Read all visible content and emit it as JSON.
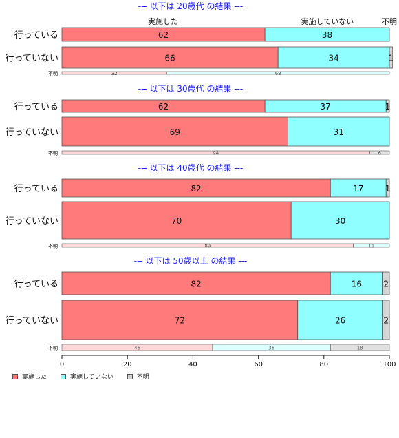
{
  "colors": {
    "done": "#ff7b7b",
    "not_done": "#8fffff",
    "unknown": "#d6d6d6",
    "title": "#2222ee",
    "edge": "#555555"
  },
  "header_labels": [
    "実施した",
    "実施していない",
    "不明"
  ],
  "legend": [
    "実施した",
    "実施していない",
    "不明"
  ],
  "axis": {
    "min": 0,
    "max": 100,
    "ticks": [
      "0",
      "20",
      "40",
      "60",
      "80",
      "100"
    ]
  },
  "chart_data": {
    "type": "bar",
    "orientation": "horizontal",
    "stacked": true,
    "xlim": [
      0,
      100
    ],
    "series_names": [
      "実施した",
      "実施していない",
      "不明"
    ],
    "panels": [
      {
        "title": "--- 以下は 20歳代 の結果 ---",
        "rows": [
          {
            "label": "行っている",
            "values": [
              62,
              38,
              0
            ],
            "labels": [
              "62",
              "38",
              ""
            ]
          },
          {
            "label": "行っていない",
            "values": [
              66,
              34,
              1
            ],
            "labels": [
              "66",
              "34",
              "1"
            ]
          },
          {
            "label": "不明",
            "small": true,
            "values": [
              32,
              68,
              0
            ],
            "labels": [
              "32",
              "68",
              ""
            ]
          }
        ]
      },
      {
        "title": "--- 以下は 30歳代 の結果 ---",
        "rows": [
          {
            "label": "行っている",
            "values": [
              62,
              37,
              1
            ],
            "labels": [
              "62",
              "37",
              "1"
            ]
          },
          {
            "label": "行っていない",
            "values": [
              69,
              31,
              0
            ],
            "labels": [
              "69",
              "31",
              ""
            ]
          },
          {
            "label": "不明",
            "small": true,
            "values": [
              94,
              0,
              6
            ],
            "labels": [
              "94",
              "",
              "6"
            ]
          }
        ]
      },
      {
        "title": "--- 以下は 40歳代 の結果 ---",
        "rows": [
          {
            "label": "行っている",
            "values": [
              82,
              17,
              1
            ],
            "labels": [
              "82",
              "17",
              "1"
            ]
          },
          {
            "label": "行っていない",
            "values": [
              70,
              30,
              0
            ],
            "labels": [
              "70",
              "30",
              ""
            ]
          },
          {
            "label": "不明",
            "small": true,
            "values": [
              89,
              11,
              0
            ],
            "labels": [
              "89",
              "11",
              ""
            ]
          }
        ]
      },
      {
        "title": "--- 以下は 50歳以上 の結果 ---",
        "rows": [
          {
            "label": "行っている",
            "values": [
              82,
              16,
              2
            ],
            "labels": [
              "82",
              "16",
              "2"
            ]
          },
          {
            "label": "行っていない",
            "values": [
              72,
              26,
              2
            ],
            "labels": [
              "72",
              "26",
              "2"
            ]
          },
          {
            "label": "不明",
            "small": true,
            "values": [
              46,
              36,
              18
            ],
            "labels": [
              "46",
              "36",
              "18"
            ]
          }
        ]
      }
    ]
  }
}
